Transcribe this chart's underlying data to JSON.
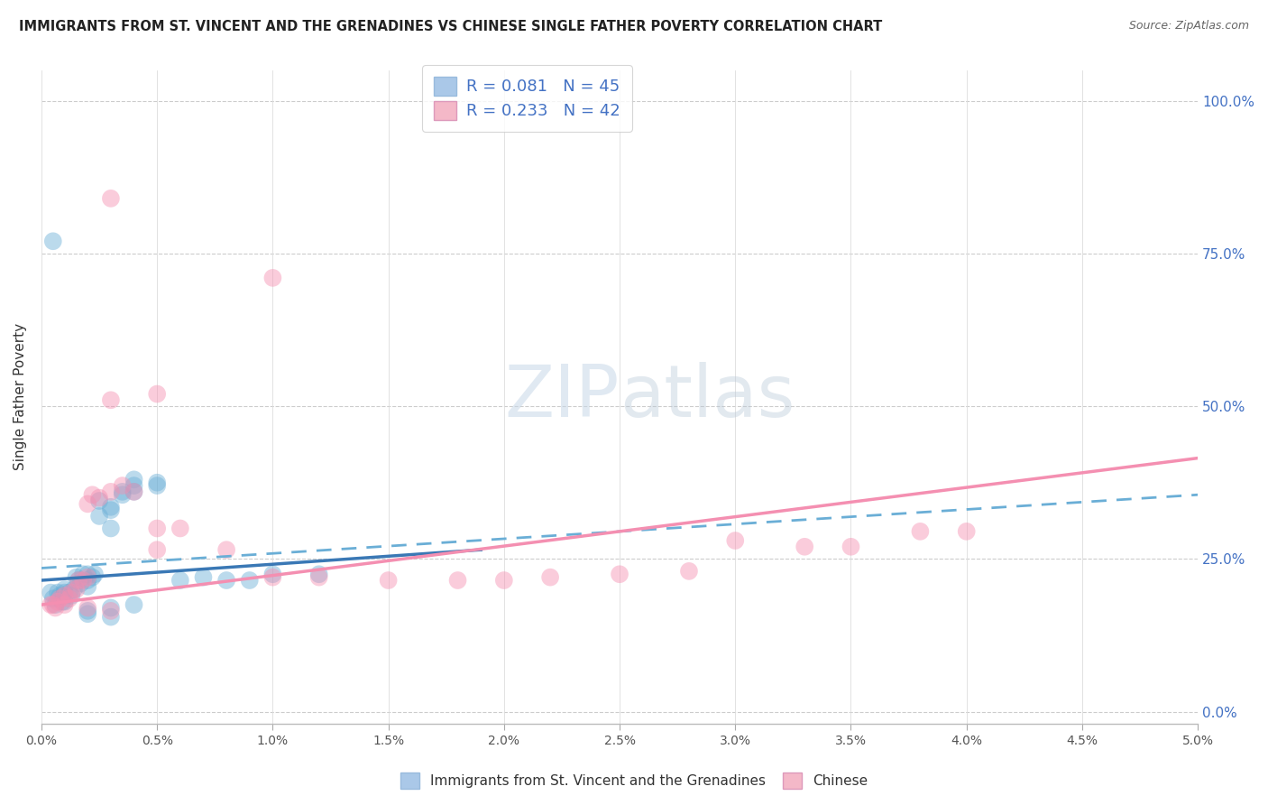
{
  "title": "IMMIGRANTS FROM ST. VINCENT AND THE GRENADINES VS CHINESE SINGLE FATHER POVERTY CORRELATION CHART",
  "source": "Source: ZipAtlas.com",
  "ylabel": "Single Father Poverty",
  "yticks_labels": [
    "0.0%",
    "25.0%",
    "50.0%",
    "75.0%",
    "100.0%"
  ],
  "ytick_vals": [
    0.0,
    0.25,
    0.5,
    0.75,
    1.0
  ],
  "xlim": [
    0.0,
    0.05
  ],
  "ylim": [
    -0.02,
    1.05
  ],
  "legend1_label": "R = 0.081   N = 45",
  "legend2_label": "R = 0.233   N = 42",
  "legend1_color": "#aac8e8",
  "legend2_color": "#f4b8c8",
  "watermark_zip": "ZIP",
  "watermark_atlas": "atlas",
  "blue_color": "#6aaed6",
  "pink_color": "#f48fb1",
  "blue_scatter": [
    [
      0.0004,
      0.195
    ],
    [
      0.0005,
      0.185
    ],
    [
      0.0006,
      0.175
    ],
    [
      0.0007,
      0.195
    ],
    [
      0.0008,
      0.19
    ],
    [
      0.0009,
      0.18
    ],
    [
      0.001,
      0.195
    ],
    [
      0.001,
      0.18
    ],
    [
      0.001,
      0.2
    ],
    [
      0.0012,
      0.195
    ],
    [
      0.0013,
      0.19
    ],
    [
      0.0014,
      0.2
    ],
    [
      0.0015,
      0.22
    ],
    [
      0.0016,
      0.215
    ],
    [
      0.0017,
      0.21
    ],
    [
      0.0018,
      0.225
    ],
    [
      0.002,
      0.225
    ],
    [
      0.002,
      0.215
    ],
    [
      0.002,
      0.205
    ],
    [
      0.0022,
      0.22
    ],
    [
      0.0023,
      0.225
    ],
    [
      0.0025,
      0.32
    ],
    [
      0.0025,
      0.345
    ],
    [
      0.003,
      0.33
    ],
    [
      0.003,
      0.3
    ],
    [
      0.003,
      0.335
    ],
    [
      0.0035,
      0.355
    ],
    [
      0.0035,
      0.36
    ],
    [
      0.004,
      0.37
    ],
    [
      0.004,
      0.36
    ],
    [
      0.004,
      0.38
    ],
    [
      0.005,
      0.375
    ],
    [
      0.005,
      0.37
    ],
    [
      0.006,
      0.215
    ],
    [
      0.007,
      0.22
    ],
    [
      0.008,
      0.215
    ],
    [
      0.009,
      0.215
    ],
    [
      0.01,
      0.225
    ],
    [
      0.012,
      0.225
    ],
    [
      0.0005,
      0.77
    ],
    [
      0.002,
      0.165
    ],
    [
      0.003,
      0.17
    ],
    [
      0.002,
      0.16
    ],
    [
      0.004,
      0.175
    ],
    [
      0.003,
      0.155
    ]
  ],
  "pink_scatter": [
    [
      0.0004,
      0.175
    ],
    [
      0.0006,
      0.17
    ],
    [
      0.0007,
      0.18
    ],
    [
      0.0008,
      0.185
    ],
    [
      0.001,
      0.19
    ],
    [
      0.001,
      0.175
    ],
    [
      0.0012,
      0.185
    ],
    [
      0.0013,
      0.195
    ],
    [
      0.0015,
      0.2
    ],
    [
      0.0016,
      0.215
    ],
    [
      0.0018,
      0.215
    ],
    [
      0.002,
      0.22
    ],
    [
      0.002,
      0.34
    ],
    [
      0.0022,
      0.355
    ],
    [
      0.0025,
      0.35
    ],
    [
      0.003,
      0.36
    ],
    [
      0.0035,
      0.37
    ],
    [
      0.004,
      0.36
    ],
    [
      0.005,
      0.3
    ],
    [
      0.005,
      0.265
    ],
    [
      0.006,
      0.3
    ],
    [
      0.008,
      0.265
    ],
    [
      0.01,
      0.22
    ],
    [
      0.012,
      0.22
    ],
    [
      0.015,
      0.215
    ],
    [
      0.018,
      0.215
    ],
    [
      0.02,
      0.215
    ],
    [
      0.022,
      0.22
    ],
    [
      0.025,
      0.225
    ],
    [
      0.028,
      0.23
    ],
    [
      0.03,
      0.28
    ],
    [
      0.033,
      0.27
    ],
    [
      0.035,
      0.27
    ],
    [
      0.038,
      0.295
    ],
    [
      0.04,
      0.295
    ],
    [
      0.003,
      0.84
    ],
    [
      0.01,
      0.71
    ],
    [
      0.003,
      0.51
    ],
    [
      0.005,
      0.52
    ],
    [
      0.0005,
      0.175
    ],
    [
      0.002,
      0.17
    ],
    [
      0.003,
      0.165
    ]
  ],
  "blue_solid_line_x": [
    0.0,
    0.019
  ],
  "blue_solid_line_y": [
    0.215,
    0.265
  ],
  "blue_dash_line_x": [
    0.0,
    0.05
  ],
  "blue_dash_line_y": [
    0.235,
    0.355
  ],
  "pink_solid_line_x": [
    0.0,
    0.05
  ],
  "pink_solid_line_y": [
    0.175,
    0.415
  ]
}
